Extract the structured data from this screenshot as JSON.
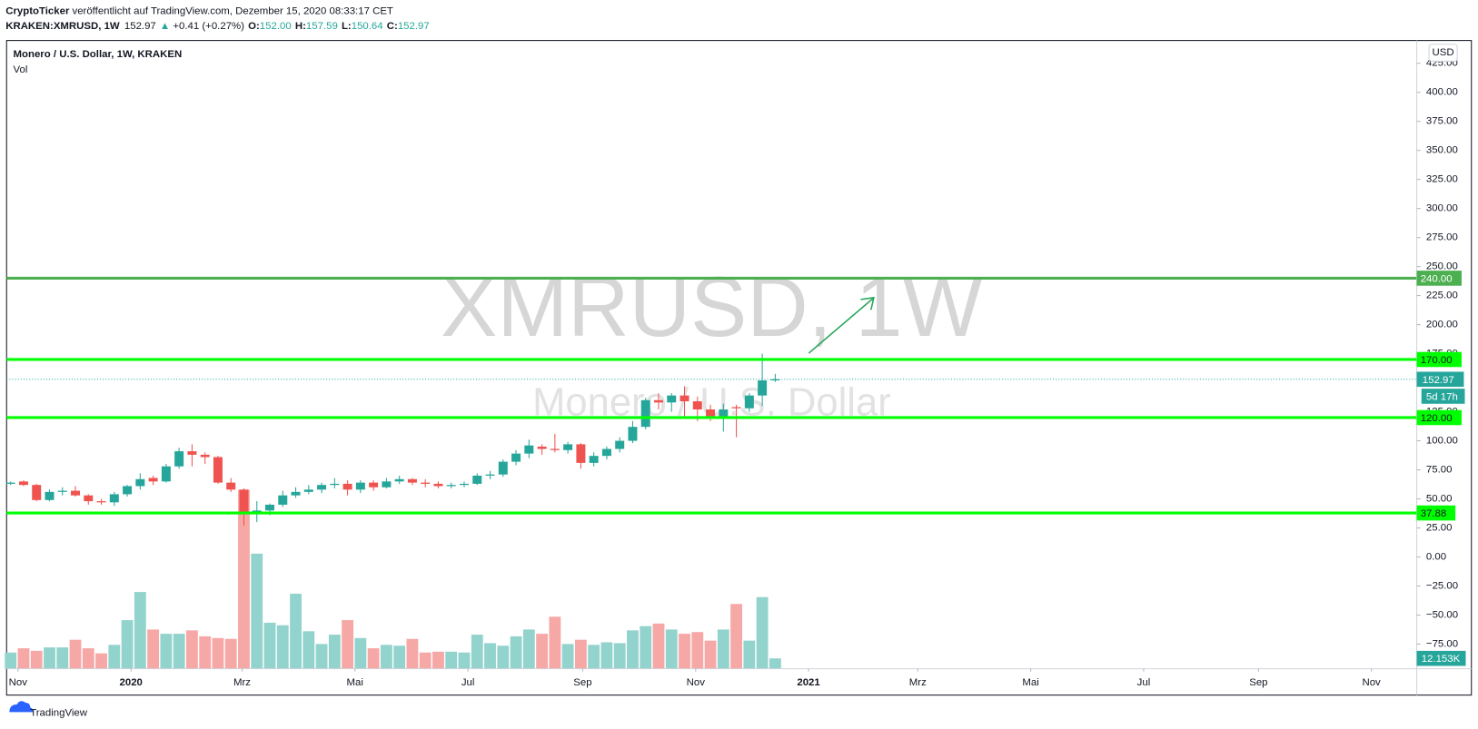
{
  "header": {
    "author": "CryptoTicker",
    "published": "veröffentlicht auf TradingView.com, Dezember 15, 2020 08:33:17 CET",
    "symbol": "KRAKEN:XMRUSD, 1W",
    "last": "152.97",
    "arrow": "▲",
    "change": "+0.41 (+0.27%)",
    "o": "O:",
    "open": "152.00",
    "h": "H:",
    "high": "157.59",
    "l": "L:",
    "low": "150.64",
    "c": "C:",
    "close": "152.97"
  },
  "legend": {
    "title": "Monero / U.S. Dollar, 1W, KRAKEN",
    "volume": "Vol"
  },
  "currency": "USD",
  "footer": "TradingView",
  "chart_data": {
    "type": "candlestick",
    "watermark": "XMRUSD, 1W",
    "watermark_sub": "Monero / U.S. Dollar",
    "up_color": "#26a69a",
    "down_color": "#ef5350",
    "volume_up_color": "#93d3cd",
    "volume_down_color": "#f6a8a6",
    "open": [
      63,
      65,
      62,
      49,
      56,
      57,
      53,
      48,
      47,
      54,
      61,
      68,
      65,
      78,
      91,
      88,
      86,
      64,
      58,
      37,
      40,
      45,
      53,
      56,
      58,
      62,
      63,
      58,
      64,
      60,
      65,
      67,
      64,
      63,
      61,
      62,
      63,
      70,
      71,
      82,
      89,
      95,
      93,
      92,
      97,
      81,
      87,
      93,
      100,
      112,
      135,
      133,
      139,
      134,
      127,
      120,
      129,
      128,
      139,
      152
    ],
    "high": [
      65,
      66,
      63,
      58,
      60,
      61,
      54,
      50,
      56,
      62,
      72,
      70,
      80,
      94,
      97,
      90,
      87,
      68,
      59,
      48,
      46,
      57,
      60,
      62,
      64,
      68,
      66,
      66,
      66,
      68,
      70,
      68,
      67,
      65,
      64,
      65,
      72,
      74,
      84,
      92,
      101,
      97,
      106,
      99,
      98,
      90,
      95,
      103,
      117,
      137,
      141,
      141,
      147,
      138,
      131,
      132,
      131,
      141,
      175,
      157.59
    ],
    "low": [
      62,
      61,
      48,
      48,
      53,
      52,
      45,
      45,
      44,
      52,
      58,
      62,
      64,
      76,
      78,
      80,
      63,
      56,
      27,
      30,
      36,
      43,
      51,
      54,
      55,
      59,
      53,
      55,
      57,
      59,
      63,
      62,
      60,
      59,
      59,
      60,
      62,
      67,
      69,
      79,
      85,
      88,
      90,
      89,
      76,
      78,
      84,
      90,
      98,
      110,
      127,
      125,
      120,
      117,
      117,
      108,
      103,
      125,
      130,
      150.64
    ],
    "close": [
      64,
      62,
      49,
      56,
      57,
      53,
      48,
      47,
      54,
      61,
      67,
      65,
      78,
      91,
      88,
      86,
      64,
      58,
      37,
      40,
      45,
      53,
      56,
      58,
      62,
      63,
      58,
      64,
      60,
      65,
      67,
      64,
      63,
      61,
      62,
      63,
      70,
      71,
      82,
      89,
      96,
      93,
      92,
      97,
      81,
      87,
      93,
      100,
      112,
      135,
      133,
      139,
      134,
      127,
      121,
      127,
      128,
      139,
      152,
      152.97
    ],
    "volume": [
      19000,
      24000,
      21000,
      25000,
      25000,
      34000,
      24000,
      18000,
      28000,
      57000,
      90000,
      46000,
      41000,
      41000,
      45000,
      38000,
      36000,
      35000,
      210000,
      135000,
      54000,
      51000,
      88000,
      44000,
      29000,
      40000,
      57000,
      36000,
      24000,
      28000,
      27000,
      35000,
      19000,
      20000,
      20000,
      19000,
      40000,
      30000,
      27000,
      38000,
      46000,
      41000,
      61000,
      29000,
      34000,
      28000,
      31000,
      30000,
      45000,
      50000,
      53000,
      46000,
      41000,
      43000,
      33000,
      46000,
      76000,
      33000,
      84000,
      12153
    ],
    "volume_last_label": "12.153K",
    "ylim": [
      -96.2,
      444.6
    ],
    "yticks": [
      {
        "value": -75,
        "label": "−75.00"
      },
      {
        "value": -50,
        "label": "−50.00"
      },
      {
        "value": -25,
        "label": "−25.00"
      },
      {
        "value": 0,
        "label": "0.00"
      },
      {
        "value": 25,
        "label": "25.00"
      },
      {
        "value": 50,
        "label": "50.00"
      },
      {
        "value": 75,
        "label": "75.00"
      },
      {
        "value": 100,
        "label": "100.00"
      },
      {
        "value": 125,
        "label": "125.00"
      },
      {
        "value": 150,
        "label": "150.00"
      },
      {
        "value": 175,
        "label": "175.00"
      },
      {
        "value": 200,
        "label": "200.00"
      },
      {
        "value": 225,
        "label": "225.00"
      },
      {
        "value": 250,
        "label": "250.00"
      },
      {
        "value": 275,
        "label": "275.00"
      },
      {
        "value": 300,
        "label": "300.00"
      },
      {
        "value": 325,
        "label": "325.00"
      },
      {
        "value": 350,
        "label": "350.00"
      },
      {
        "value": 375,
        "label": "375.00"
      },
      {
        "value": 400,
        "label": "400.00"
      },
      {
        "value": 425,
        "label": "425.00"
      }
    ],
    "xlim": [
      -0.31,
      108.5
    ],
    "xticks": [
      {
        "value": 0.57,
        "label": "Nov"
      },
      {
        "value": 9.29,
        "label": "2020"
      },
      {
        "value": 17.86,
        "label": "Mrz"
      },
      {
        "value": 26.57,
        "label": "Mai"
      },
      {
        "value": 35.29,
        "label": "Jul"
      },
      {
        "value": 44.14,
        "label": "Sep"
      },
      {
        "value": 52.86,
        "label": "Nov"
      },
      {
        "value": 61.57,
        "label": "2021"
      },
      {
        "value": 70,
        "label": "Mrz"
      },
      {
        "value": 78.71,
        "label": "Mai"
      },
      {
        "value": 87.43,
        "label": "Jul"
      },
      {
        "value": 96.29,
        "label": "Sep"
      },
      {
        "value": 105,
        "label": "Nov"
      }
    ],
    "levels": [
      {
        "value": 240,
        "label": "240.00",
        "color": "#4caf50"
      },
      {
        "value": 170,
        "label": "170.00",
        "color": "#00ff00"
      },
      {
        "value": 120,
        "label": "120.00",
        "color": "#00ff00"
      },
      {
        "value": 37.88,
        "label": "37.88",
        "color": "#00ff00"
      }
    ],
    "last_price": {
      "value": 152.97,
      "label": "152.97",
      "countdown": "5d 17h",
      "color": "#26a69a"
    },
    "grid": false
  }
}
